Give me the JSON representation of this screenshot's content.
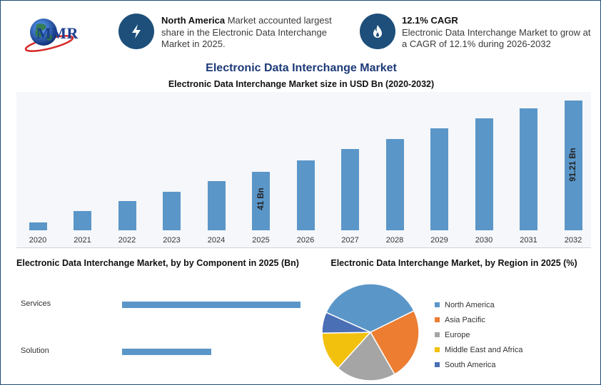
{
  "logo": {
    "text": "MMR"
  },
  "info1": {
    "bold": "North America",
    "text": " Market accounted largest share in the Electronic Data Interchange Market in 2025.",
    "icon": "lightning-icon"
  },
  "info2": {
    "bold": "12.1% CAGR",
    "text": "Electronic Data Interchange Market to grow at a CAGR of 12.1% during 2026-2032",
    "icon": "flame-icon"
  },
  "colors": {
    "accent": "#1d4f7a",
    "bar": "#5b96c8",
    "title": "#1d3a78"
  },
  "chart_data": [
    {
      "type": "bar",
      "title": "Electronic Data Interchange Market",
      "subtitle": "Electronic Data Interchange Market size in USD Bn (2020-2032)",
      "categories": [
        "2020",
        "2021",
        "2022",
        "2023",
        "2024",
        "2025",
        "2026",
        "2027",
        "2028",
        "2029",
        "2030",
        "2031",
        "2032"
      ],
      "values": [
        5.6,
        13.3,
        20.4,
        27.0,
        34.4,
        41.0,
        49.1,
        57.0,
        63.8,
        71.3,
        78.6,
        85.3,
        91.21
      ],
      "data_labels": {
        "5": "41 Bn",
        "12": "91.21 Bn"
      },
      "ylim": [
        0,
        92
      ]
    },
    {
      "type": "bar",
      "orientation": "horizontal",
      "title": "Electronic Data Interchange Market, by by Component in 2025 (Bn)",
      "categories": [
        "Services",
        "Solution"
      ],
      "values": [
        25,
        12.5
      ],
      "xlim": [
        0,
        25
      ]
    },
    {
      "type": "pie",
      "title": "Electronic Data Interchange Market, by Region in 2025 (%)",
      "labels": [
        "North America",
        "Asia Pacific",
        "Europe",
        "Middle East and Africa",
        "South America"
      ],
      "values": [
        36,
        24,
        20,
        13,
        7
      ],
      "colors": [
        "#5b96c8",
        "#ec7d31",
        "#a5a5a5",
        "#f2c10e",
        "#4a6fb5"
      ],
      "legend": "right"
    }
  ]
}
